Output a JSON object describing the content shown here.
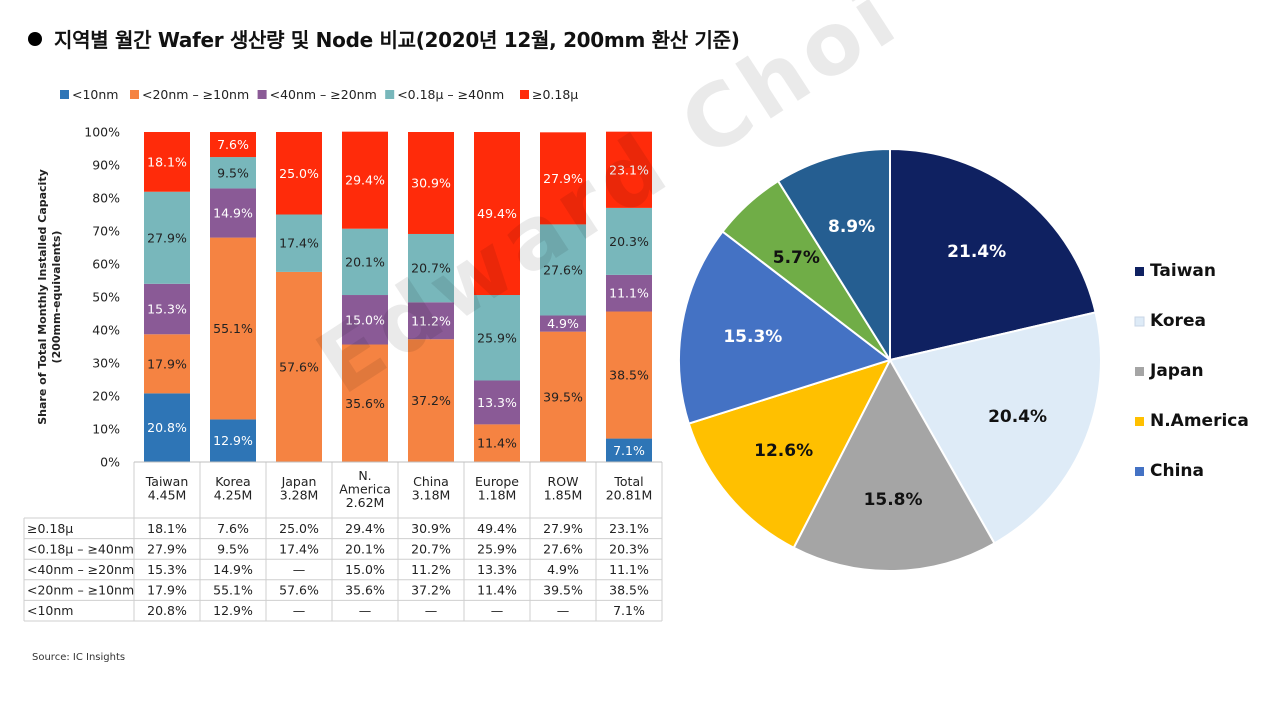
{
  "title": "지역별 월간 Wafer 생산량 및 Node 비교(2020년 12월, 200mm 환산 기준)",
  "source": "Source:  IC Insights",
  "watermark": "Edward Choi",
  "chart_data": [
    {
      "type": "bar",
      "stacked": true,
      "ylabel": "Share of Total Monthly Installed Capacity\n(200mm-equivalents)",
      "ylim": [
        0,
        100
      ],
      "yticks": [
        "0%",
        "10%",
        "20%",
        "30%",
        "40%",
        "50%",
        "60%",
        "70%",
        "80%",
        "90%",
        "100%"
      ],
      "legend_position": "top",
      "categories": [
        {
          "name": "Taiwan",
          "cap": "4.45M"
        },
        {
          "name": "Korea",
          "cap": "4.25M"
        },
        {
          "name": "Japan",
          "cap": "3.28M"
        },
        {
          "name": "N.\nAmerica",
          "cap": "2.62M"
        },
        {
          "name": "China",
          "cap": "3.18M"
        },
        {
          "name": "Europe",
          "cap": "1.18M"
        },
        {
          "name": "ROW",
          "cap": "1.85M"
        },
        {
          "name": "Total",
          "cap": "20.81M"
        }
      ],
      "series": [
        {
          "name": "<10nm",
          "color": "#2e75b6",
          "values": [
            20.8,
            12.9,
            0,
            0,
            0,
            0,
            0,
            7.1
          ],
          "labels": [
            "20.8%",
            "12.9%",
            "",
            "",
            "",
            "",
            "",
            "7.1%"
          ],
          "table": [
            "20.8%",
            "12.9%",
            "—",
            "—",
            "—",
            "—",
            "—",
            "7.1%"
          ],
          "row_label": "<10nm"
        },
        {
          "name": "<20nm – ≥10nm",
          "color": "#f58342",
          "values": [
            17.9,
            55.1,
            57.6,
            35.6,
            37.2,
            11.4,
            39.5,
            38.5
          ],
          "labels": [
            "17.9%",
            "55.1%",
            "57.6%",
            "35.6%",
            "37.2%",
            "11.4%",
            "39.5%",
            "38.5%"
          ],
          "table": [
            "17.9%",
            "55.1%",
            "57.6%",
            "35.6%",
            "37.2%",
            "11.4%",
            "39.5%",
            "38.5%"
          ],
          "row_label": "<20nm – ≥10nm"
        },
        {
          "name": "<40nm – ≥20nm",
          "color": "#8a5a96",
          "values": [
            15.3,
            14.9,
            0,
            15.0,
            11.2,
            13.3,
            4.9,
            11.1
          ],
          "labels": [
            "15.3%",
            "14.9%",
            "",
            "15.0%",
            "11.2%",
            "13.3%",
            "4.9%",
            "11.1%"
          ],
          "table": [
            "15.3%",
            "14.9%",
            "—",
            "15.0%",
            "11.2%",
            "13.3%",
            "4.9%",
            "11.1%"
          ],
          "row_label": "<40nm – ≥20nm"
        },
        {
          "name": "<0.18μ – ≥40nm",
          "color": "#78b7bb",
          "values": [
            27.9,
            9.5,
            17.4,
            20.1,
            20.7,
            25.9,
            27.6,
            20.3
          ],
          "labels": [
            "27.9%",
            "9.5%",
            "17.4%",
            "20.1%",
            "20.7%",
            "25.9%",
            "27.6%",
            "20.3%"
          ],
          "table": [
            "27.9%",
            "9.5%",
            "17.4%",
            "20.1%",
            "20.7%",
            "25.9%",
            "27.6%",
            "20.3%"
          ],
          "row_label": "<0.18μ – ≥40nm"
        },
        {
          "name": "≥0.18μ",
          "color": "#ff2b0a",
          "values": [
            18.1,
            7.6,
            25.0,
            29.4,
            30.9,
            49.4,
            27.9,
            23.1
          ],
          "labels": [
            "18.1%",
            "7.6%",
            "25.0%",
            "29.4%",
            "30.9%",
            "49.4%",
            "27.9%",
            "23.1%"
          ],
          "table": [
            "18.1%",
            "7.6%",
            "25.0%",
            "29.4%",
            "30.9%",
            "49.4%",
            "27.9%",
            "23.1%"
          ],
          "row_label": "≥0.18μ"
        }
      ],
      "table_row_order": [
        "≥0.18μ",
        "<0.18μ – ≥40nm",
        "<40nm – ≥20nm",
        "<20nm – ≥10nm",
        "<10nm"
      ]
    },
    {
      "type": "pie",
      "legend_position": "right",
      "slices": [
        {
          "label": "Taiwan",
          "value": 21.4,
          "display": "21.4%",
          "color": "#0f2161",
          "text_color": "#ffffff",
          "in_legend": true
        },
        {
          "label": "Korea",
          "value": 20.4,
          "display": "20.4%",
          "color": "#deebf7",
          "text_color": "#111111",
          "in_legend": true
        },
        {
          "label": "Japan",
          "value": 15.8,
          "display": "15.8%",
          "color": "#a5a5a5",
          "text_color": "#111111",
          "in_legend": true
        },
        {
          "label": "N.America",
          "value": 12.6,
          "display": "12.6%",
          "color": "#ffc000",
          "text_color": "#111111",
          "in_legend": true
        },
        {
          "label": "China",
          "value": 15.3,
          "display": "15.3%",
          "color": "#4472c4",
          "text_color": "#ffffff",
          "in_legend": true
        },
        {
          "label": "",
          "value": 5.7,
          "display": "5.7%",
          "color": "#70ad47",
          "text_color": "#111111",
          "in_legend": false
        },
        {
          "label": "",
          "value": 8.9,
          "display": "8.9%",
          "color": "#255e91",
          "text_color": "#ffffff",
          "in_legend": false
        }
      ]
    }
  ]
}
